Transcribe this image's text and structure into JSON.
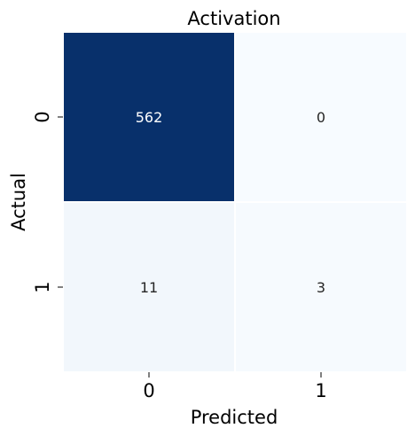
{
  "chart_data": {
    "type": "heatmap",
    "title": "Activation",
    "xlabel": "Predicted",
    "ylabel": "Actual",
    "x_categories": [
      "0",
      "1"
    ],
    "y_categories": [
      "0",
      "1"
    ],
    "values": [
      [
        562,
        0
      ],
      [
        11,
        3
      ]
    ],
    "colormap": "Blues",
    "colorbar": false,
    "low_color": "#f7fbff",
    "high_color": "#08306b",
    "cell_separator_color": "#ffffff"
  }
}
